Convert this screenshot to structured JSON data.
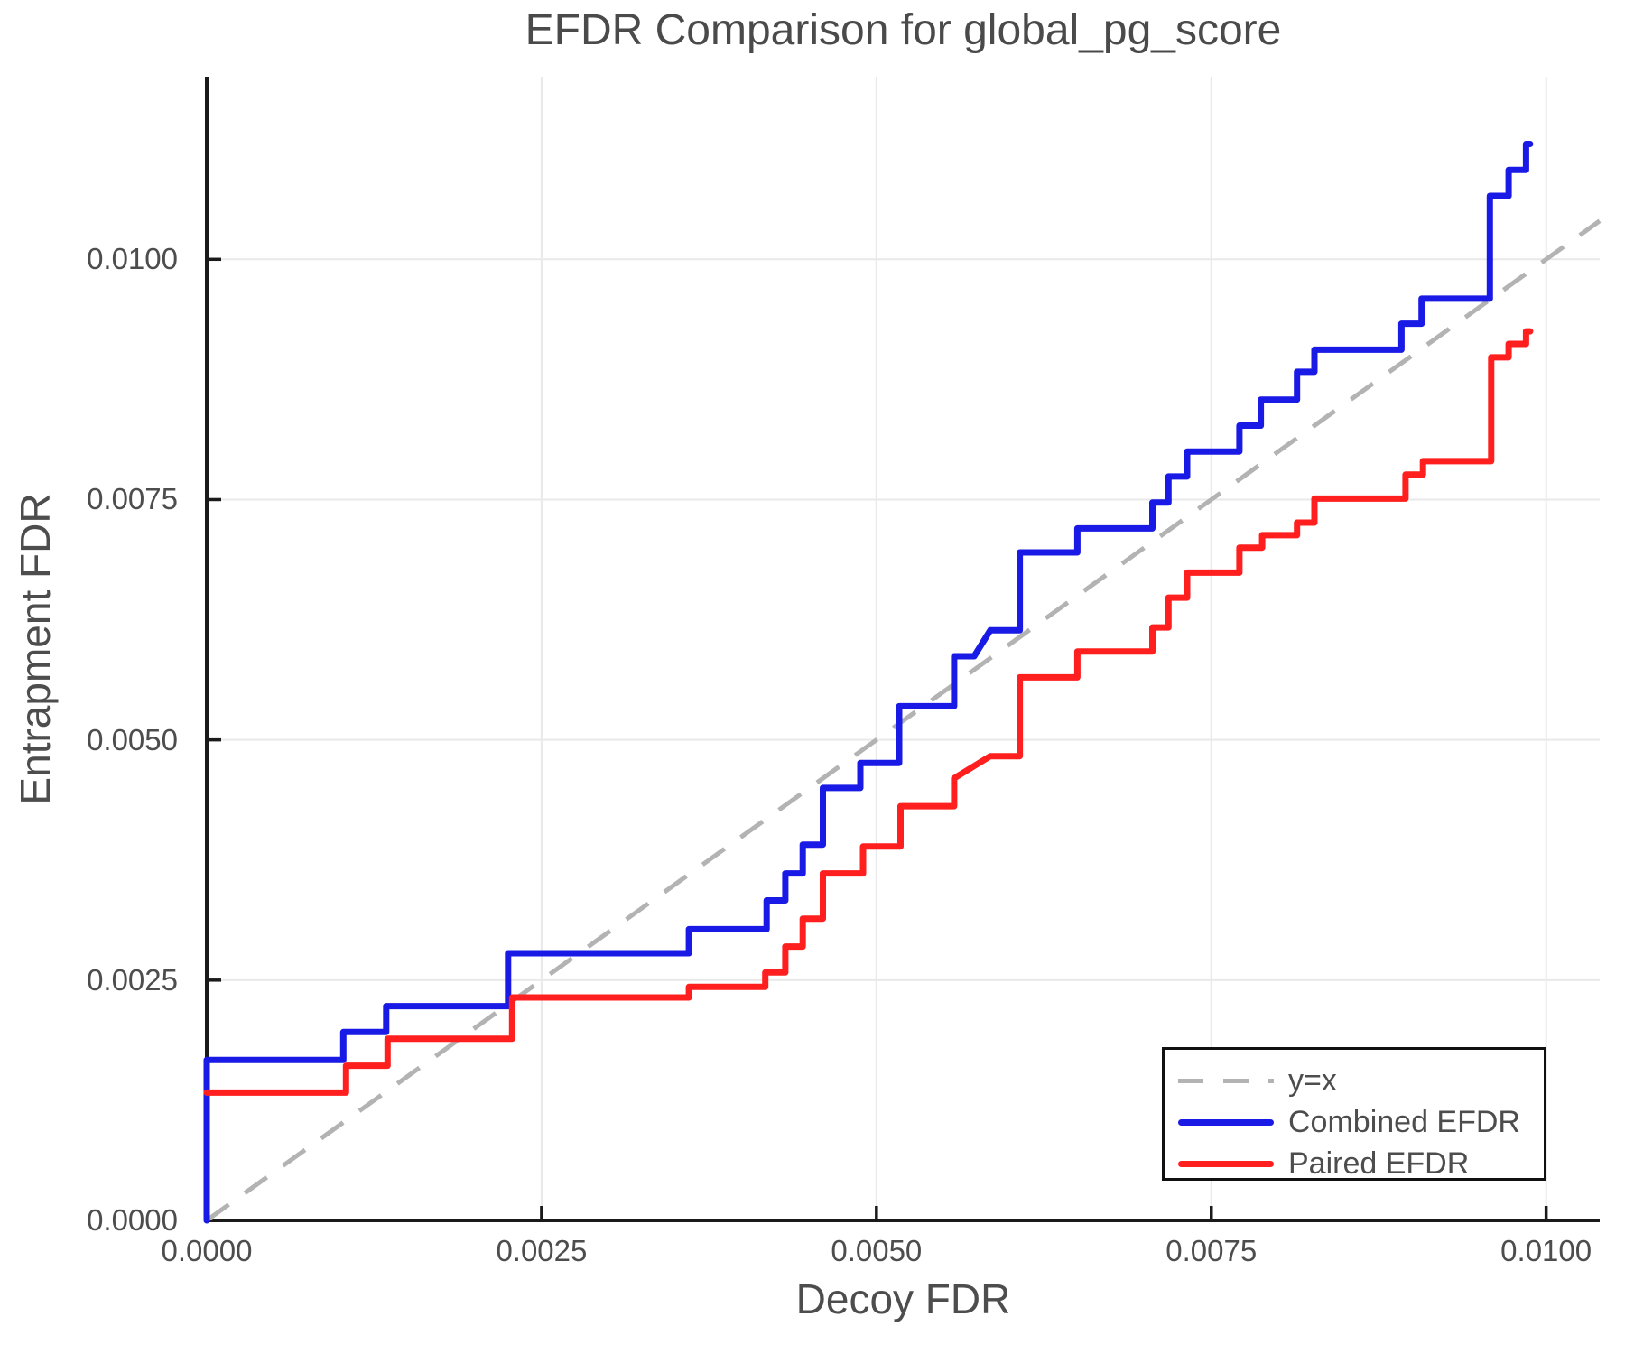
{
  "title": "EFDR Comparison for global_pg_score",
  "chart_data": {
    "type": "line",
    "subtype": "step-curves",
    "title": "EFDR Comparison for global_pg_score",
    "xlabel": "Decoy FDR",
    "ylabel": "Entrapment FDR",
    "xlim": [
      0,
      0.0104
    ],
    "ylim": [
      0,
      0.0119
    ],
    "grid": true,
    "legend_position": "bottom-right",
    "x_ticks": {
      "values": [
        0,
        0.0025,
        0.005,
        0.0075,
        0.01
      ],
      "labels": [
        "0.0000",
        "0.0025",
        "0.0050",
        "0.0075",
        "0.0100"
      ]
    },
    "y_ticks": {
      "values": [
        0,
        0.0025,
        0.005,
        0.0075,
        0.01
      ],
      "labels": [
        "0.0000",
        "0.0025",
        "0.0050",
        "0.0075",
        "0.0100"
      ]
    },
    "reference_line": {
      "name": "y=x",
      "style": "dashed",
      "color": "#b3b3b3",
      "from": [
        0,
        0
      ],
      "to": [
        0.0104,
        0.0104
      ]
    },
    "series": [
      {
        "name": "Combined EFDR",
        "color": "#1a1ae6",
        "points": [
          [
            0,
            0
          ],
          [
            0,
            0.00167
          ],
          [
            0.00102,
            0.00167
          ],
          [
            0.00102,
            0.00196
          ],
          [
            0.00134,
            0.00196
          ],
          [
            0.00134,
            0.00223
          ],
          [
            0.00225,
            0.00223
          ],
          [
            0.00225,
            0.00278
          ],
          [
            0.0036,
            0.00278
          ],
          [
            0.0036,
            0.00303
          ],
          [
            0.00418,
            0.00303
          ],
          [
            0.00418,
            0.00333
          ],
          [
            0.00432,
            0.00333
          ],
          [
            0.00432,
            0.00361
          ],
          [
            0.00445,
            0.00361
          ],
          [
            0.00445,
            0.00391
          ],
          [
            0.0046,
            0.00391
          ],
          [
            0.0046,
            0.0045
          ],
          [
            0.00488,
            0.0045
          ],
          [
            0.00488,
            0.00476
          ],
          [
            0.00517,
            0.00476
          ],
          [
            0.00517,
            0.00535
          ],
          [
            0.00558,
            0.00535
          ],
          [
            0.00558,
            0.00587
          ],
          [
            0.00573,
            0.00587
          ],
          [
            0.00585,
            0.00614
          ],
          [
            0.00607,
            0.00614
          ],
          [
            0.00607,
            0.00695
          ],
          [
            0.0065,
            0.00695
          ],
          [
            0.0065,
            0.0072
          ],
          [
            0.00706,
            0.0072
          ],
          [
            0.00706,
            0.00747
          ],
          [
            0.00718,
            0.00747
          ],
          [
            0.00718,
            0.00774
          ],
          [
            0.00732,
            0.00774
          ],
          [
            0.00732,
            0.008
          ],
          [
            0.00771,
            0.008
          ],
          [
            0.00771,
            0.00827
          ],
          [
            0.00787,
            0.00827
          ],
          [
            0.00787,
            0.00854
          ],
          [
            0.00814,
            0.00854
          ],
          [
            0.00814,
            0.00883
          ],
          [
            0.00827,
            0.00883
          ],
          [
            0.00827,
            0.00906
          ],
          [
            0.00892,
            0.00906
          ],
          [
            0.00892,
            0.00933
          ],
          [
            0.00907,
            0.00933
          ],
          [
            0.00907,
            0.00959
          ],
          [
            0.00958,
            0.00959
          ],
          [
            0.00958,
            0.01066
          ],
          [
            0.00972,
            0.01066
          ],
          [
            0.00972,
            0.01093
          ],
          [
            0.00985,
            0.01093
          ],
          [
            0.00985,
            0.0112
          ],
          [
            0.00988,
            0.0112
          ]
        ]
      },
      {
        "name": "Paired EFDR",
        "color": "#ff1f1f",
        "points": [
          [
            0,
            0.00133
          ],
          [
            0.00104,
            0.00133
          ],
          [
            0.00104,
            0.00161
          ],
          [
            0.00135,
            0.00161
          ],
          [
            0.00135,
            0.00189
          ],
          [
            0.00228,
            0.00189
          ],
          [
            0.00228,
            0.00232
          ],
          [
            0.0036,
            0.00232
          ],
          [
            0.0036,
            0.00243
          ],
          [
            0.00417,
            0.00243
          ],
          [
            0.00417,
            0.00258
          ],
          [
            0.00432,
            0.00258
          ],
          [
            0.00432,
            0.00285
          ],
          [
            0.00445,
            0.00285
          ],
          [
            0.00445,
            0.00314
          ],
          [
            0.0046,
            0.00314
          ],
          [
            0.0046,
            0.00361
          ],
          [
            0.0049,
            0.00361
          ],
          [
            0.0049,
            0.00389
          ],
          [
            0.00518,
            0.00389
          ],
          [
            0.00518,
            0.00431
          ],
          [
            0.00558,
            0.00431
          ],
          [
            0.00558,
            0.0046
          ],
          [
            0.00585,
            0.00483
          ],
          [
            0.00607,
            0.00483
          ],
          [
            0.00607,
            0.00565
          ],
          [
            0.0065,
            0.00565
          ],
          [
            0.0065,
            0.00592
          ],
          [
            0.00706,
            0.00592
          ],
          [
            0.00706,
            0.00617
          ],
          [
            0.00718,
            0.00617
          ],
          [
            0.00718,
            0.00648
          ],
          [
            0.00732,
            0.00648
          ],
          [
            0.00732,
            0.00674
          ],
          [
            0.00771,
            0.00674
          ],
          [
            0.00771,
            0.007
          ],
          [
            0.00788,
            0.007
          ],
          [
            0.00788,
            0.00713
          ],
          [
            0.00814,
            0.00713
          ],
          [
            0.00814,
            0.00726
          ],
          [
            0.00827,
            0.00726
          ],
          [
            0.00827,
            0.00751
          ],
          [
            0.00895,
            0.00751
          ],
          [
            0.00895,
            0.00776
          ],
          [
            0.00908,
            0.00776
          ],
          [
            0.00908,
            0.0079
          ],
          [
            0.00959,
            0.0079
          ],
          [
            0.00959,
            0.00898
          ],
          [
            0.00972,
            0.00898
          ],
          [
            0.00972,
            0.00912
          ],
          [
            0.00985,
            0.00912
          ],
          [
            0.00985,
            0.00925
          ],
          [
            0.00988,
            0.00925
          ]
        ]
      }
    ]
  },
  "legend": {
    "items": [
      {
        "label": "y=x",
        "style": "dashed",
        "color": "#b3b3b3"
      },
      {
        "label": "Combined EFDR",
        "style": "solid",
        "color": "#1a1ae6"
      },
      {
        "label": "Paired EFDR",
        "style": "solid",
        "color": "#ff1f1f"
      }
    ]
  }
}
